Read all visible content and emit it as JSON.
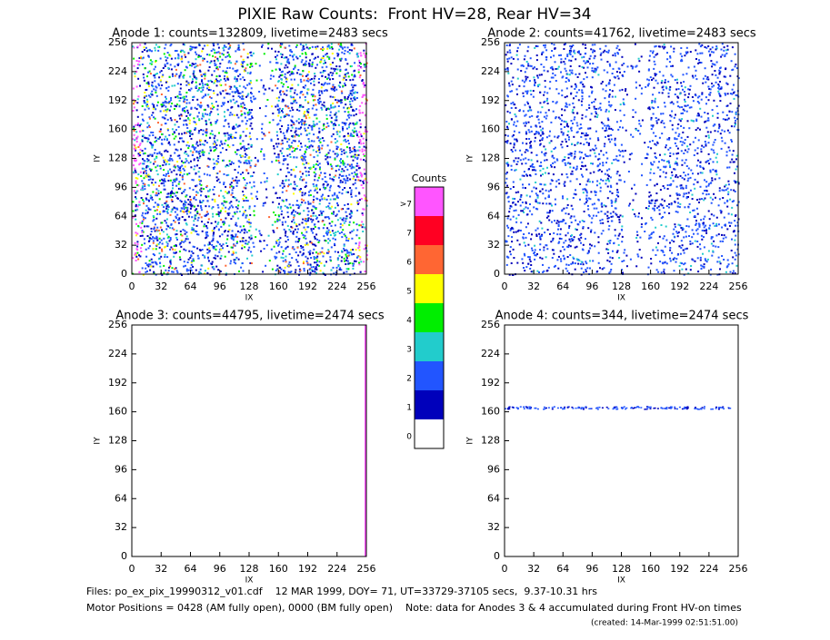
{
  "title": "PIXIE Raw Counts:  Front HV=28, Rear HV=34",
  "chart_data": [
    {
      "type": "heatmap",
      "title": "Anode 1: counts=132809, livetime=2483 secs",
      "xlabel": "IX",
      "ylabel": "IY",
      "xlim": [
        0,
        256
      ],
      "ylim": [
        0,
        256
      ],
      "xticks": [
        0,
        32,
        64,
        96,
        128,
        160,
        192,
        224,
        256
      ],
      "yticks": [
        0,
        32,
        64,
        96,
        128,
        160,
        192,
        224,
        256
      ]
    },
    {
      "type": "heatmap",
      "title": "Anode 2: counts=41762, livetime=2483 secs",
      "xlabel": "IX",
      "ylabel": "IY",
      "xlim": [
        0,
        256
      ],
      "ylim": [
        0,
        256
      ],
      "xticks": [
        0,
        32,
        64,
        96,
        128,
        160,
        192,
        224,
        256
      ],
      "yticks": [
        0,
        32,
        64,
        96,
        128,
        160,
        192,
        224,
        256
      ]
    },
    {
      "type": "heatmap",
      "title": "Anode 3: counts=44795, livetime=2474 secs",
      "xlabel": "IX",
      "ylabel": "IY",
      "xlim": [
        0,
        256
      ],
      "ylim": [
        0,
        256
      ],
      "xticks": [
        0,
        32,
        64,
        96,
        128,
        160,
        192,
        224,
        256
      ],
      "yticks": [
        0,
        32,
        64,
        96,
        128,
        160,
        192,
        224,
        256
      ]
    },
    {
      "type": "heatmap",
      "title": "Anode 4: counts=344, livetime=2474 secs",
      "xlabel": "IX",
      "ylabel": "IY",
      "xlim": [
        0,
        256
      ],
      "ylim": [
        0,
        256
      ],
      "xticks": [
        0,
        32,
        64,
        96,
        128,
        160,
        192,
        224,
        256
      ],
      "yticks": [
        0,
        32,
        64,
        96,
        128,
        160,
        192,
        224,
        256
      ]
    }
  ],
  "colorbar": {
    "title": "Counts",
    "levels": [
      {
        "label": ">7",
        "color": "#ff55ff"
      },
      {
        "label": "7",
        "color": "#ff0022"
      },
      {
        "label": "6",
        "color": "#ff6633"
      },
      {
        "label": "5",
        "color": "#ffff00"
      },
      {
        "label": "4",
        "color": "#00ee00"
      },
      {
        "label": "3",
        "color": "#22cccc"
      },
      {
        "label": "2",
        "color": "#2255ff"
      },
      {
        "label": "1",
        "color": "#0000bb"
      },
      {
        "label": "0",
        "color": "#ffffff"
      }
    ]
  },
  "footer": {
    "files": "Files: po_ex_pix_19990312_v01.cdf    12 MAR 1999, DOY= 71, UT=33729-37105 secs,  9.37-10.31 hrs",
    "motor": "Motor Positions = 0428 (AM fully open), 0000 (BM fully open)    Note: data for Anodes 3 & 4 accumulated during Front HV-on times",
    "created": "(created: 14-Mar-1999 02:51:51.00)"
  }
}
